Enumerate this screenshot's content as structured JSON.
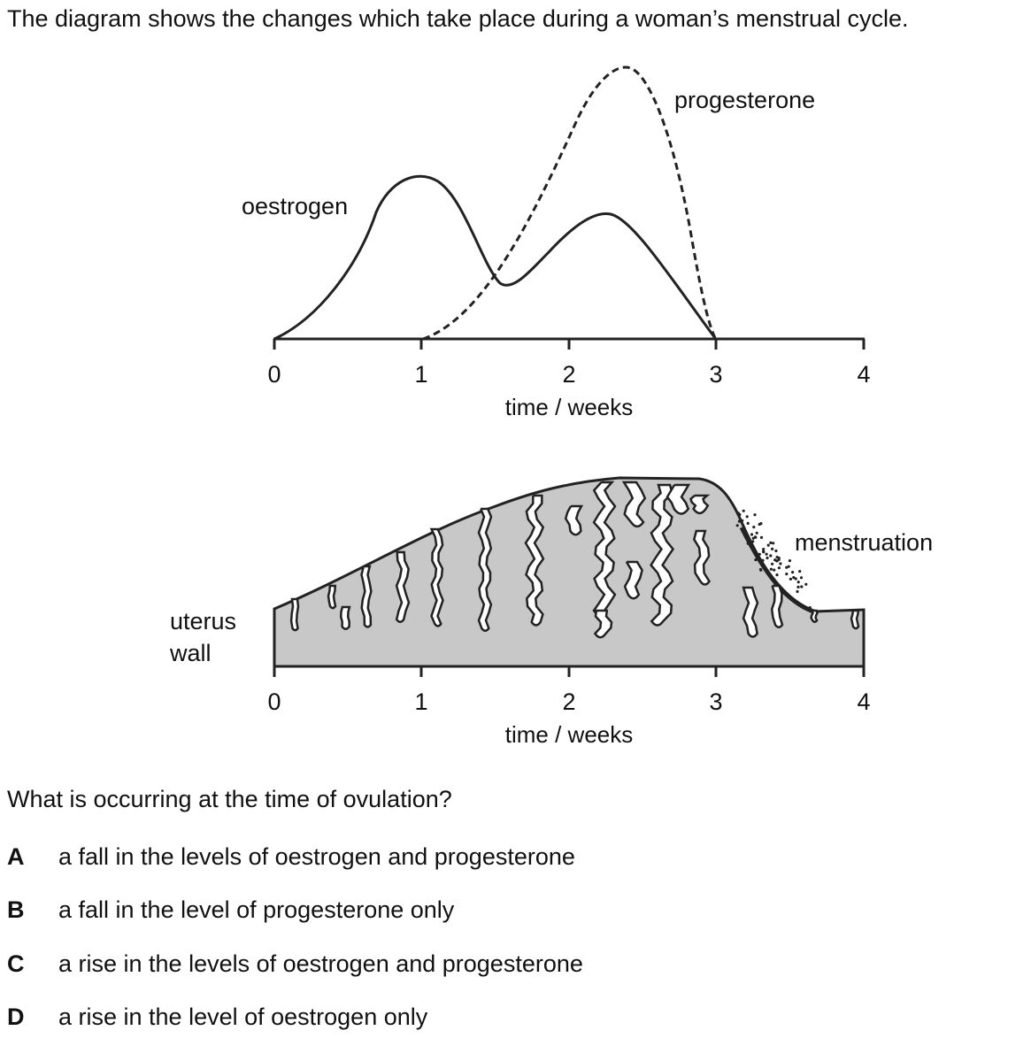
{
  "intro": "The diagram shows the changes which take place during a woman’s menstrual cycle.",
  "hormone_graph": {
    "labels": {
      "oestrogen": "oestrogen",
      "progesterone": "progesterone"
    },
    "x_ticks": [
      "0",
      "1",
      "2",
      "3",
      "4"
    ],
    "x_label": "time / weeks",
    "x_range": [
      0,
      4
    ]
  },
  "uterus_graph": {
    "labels": {
      "uterus_wall_line1": "uterus",
      "uterus_wall_line2": "wall",
      "menstruation": "menstruation"
    },
    "x_ticks": [
      "0",
      "1",
      "2",
      "3",
      "4"
    ],
    "x_label": "time / weeks",
    "x_range": [
      0,
      4
    ]
  },
  "question": "What is occurring at the time of ovulation?",
  "options": [
    {
      "letter": "A",
      "text": "a fall in the levels of oestrogen and progesterone"
    },
    {
      "letter": "B",
      "text": "a fall in the level of progesterone only"
    },
    {
      "letter": "C",
      "text": "a rise in the levels of oestrogen and progesterone"
    },
    {
      "letter": "D",
      "text": "a rise in the level of oestrogen only"
    }
  ],
  "colors": {
    "ink": "#222222",
    "wall_fill": "#c8c8c8"
  }
}
